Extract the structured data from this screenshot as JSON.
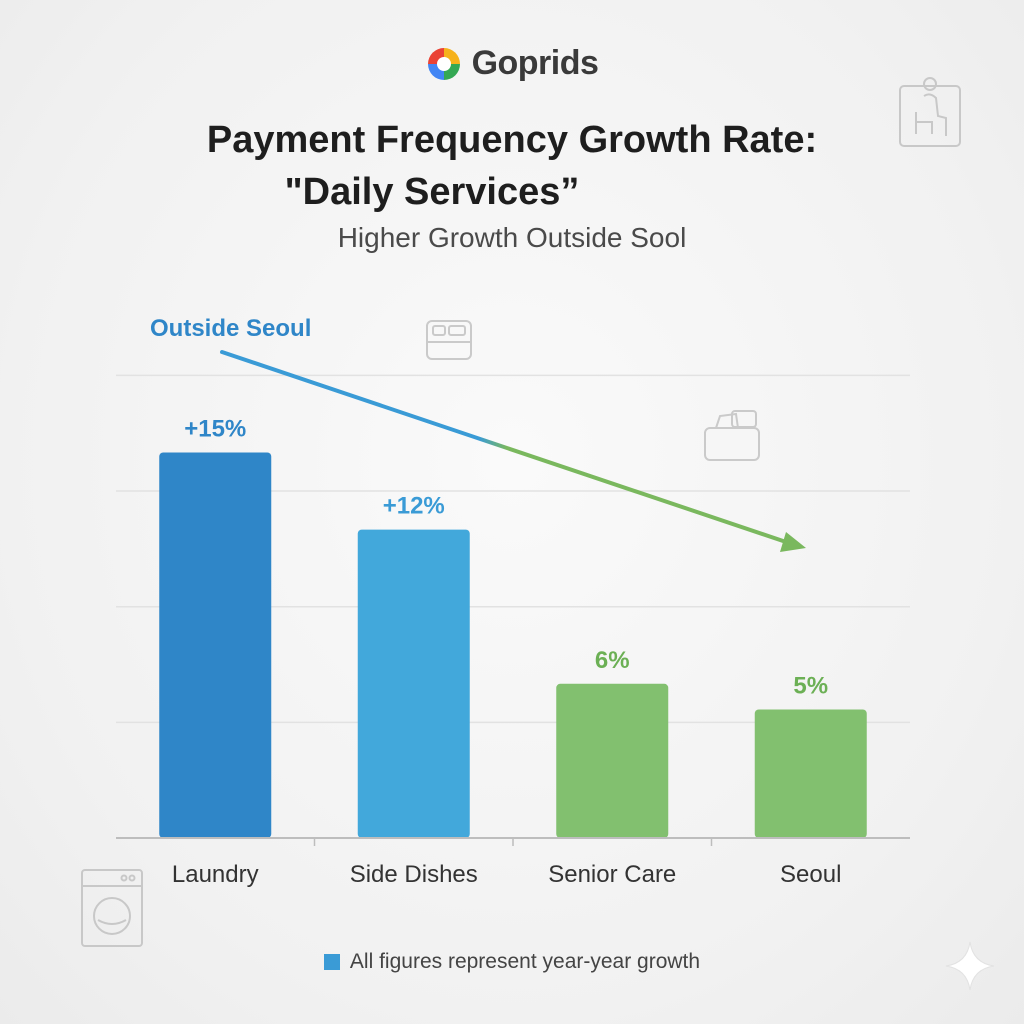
{
  "brand": {
    "name": "Goprids",
    "logo_icon": "goprids-logo-icon"
  },
  "chart_data": {
    "type": "bar",
    "title_line1": "Payment Frequency Growth Rate:",
    "title_line2": "\"Daily Services”",
    "subtitle": "Higher Growth Outside Sool",
    "categories": [
      "Laundry",
      "Side Dishes",
      "Senior Care",
      "Seoul"
    ],
    "values": [
      15,
      12,
      6,
      5
    ],
    "value_labels": [
      "+15%",
      "+12%",
      "6%",
      "5%"
    ],
    "bar_colors": [
      "#2f86c8",
      "#42a8db",
      "#82c06f",
      "#82c06f"
    ],
    "label_colors": [
      "#2f86c8",
      "#3a9bd6",
      "#6cb055",
      "#6cb055"
    ],
    "ylim": [
      0,
      18
    ],
    "grid": true,
    "annotation": {
      "text": "Outside Seoul",
      "color": "#2f86c8",
      "arrow_colors": [
        "#3a9bd6",
        "#7ab85e"
      ]
    },
    "legend": {
      "text": "All figures represent year-year growth",
      "color": "#3a9bd6",
      "placement": "bottom-center"
    }
  },
  "decorations": [
    "senior-care-icon",
    "meal-tray-icon",
    "food-box-icon",
    "washing-machine-icon",
    "sparkle-icon"
  ]
}
